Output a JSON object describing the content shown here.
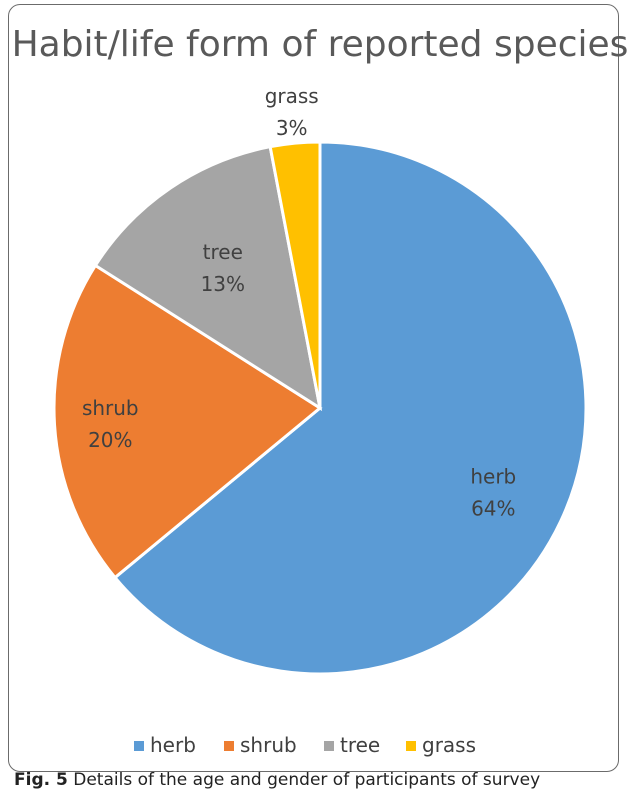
{
  "chart_data": {
    "type": "pie",
    "title": "Habit/life form of reported species",
    "start_angle_deg": 0,
    "direction": "clockwise",
    "legend_position": "bottom",
    "slices": [
      {
        "label": "herb",
        "value": 64,
        "value_label": "64%",
        "color": "#5B9BD5"
      },
      {
        "label": "shrub",
        "value": 20,
        "value_label": "20%",
        "color": "#ED7D31"
      },
      {
        "label": "tree",
        "value": 13,
        "value_label": "13%",
        "color": "#A5A5A5"
      },
      {
        "label": "grass",
        "value": 3,
        "value_label": "3%",
        "color": "#FFC000"
      }
    ]
  },
  "caption": {
    "label": "Fig. 5",
    "text": "Details of the age and gender of participants of survey"
  }
}
